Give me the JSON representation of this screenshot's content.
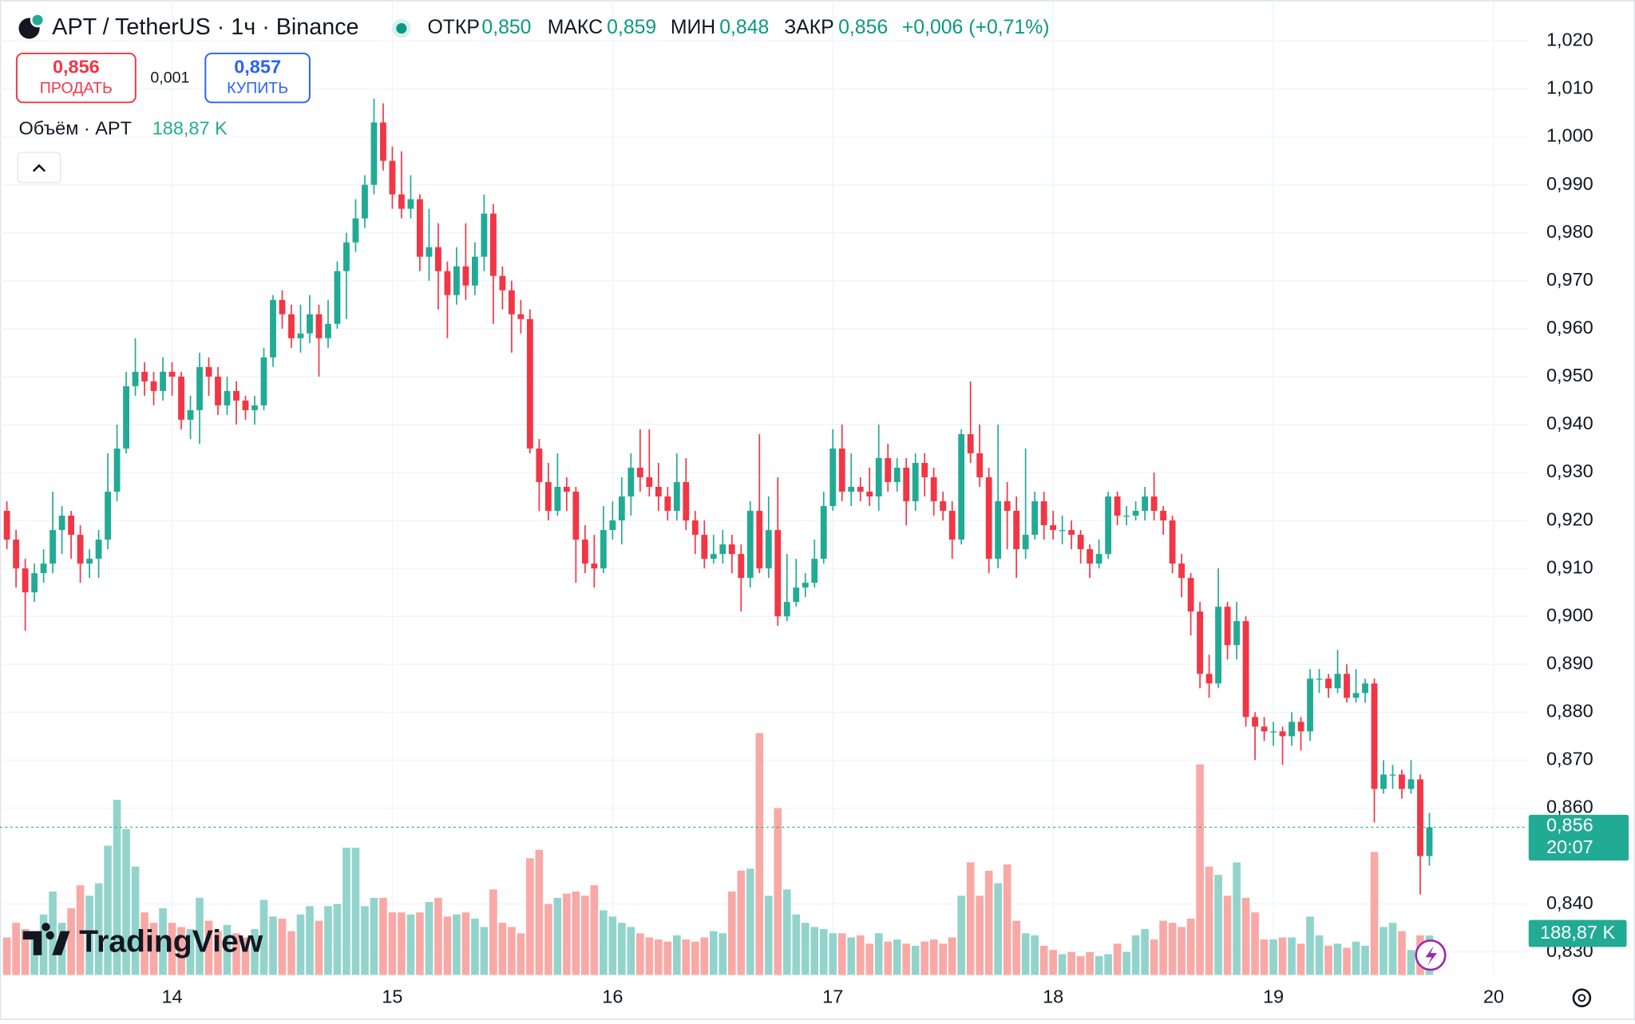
{
  "chart_data": {
    "type": "candlestick",
    "header": {
      "symbol": "APT / TetherUS · 1ч · Binance",
      "open_label": "ОТКР",
      "open": "0,850",
      "high_label": "МАКС",
      "high": "0,859",
      "low_label": "МИН",
      "low": "0,848",
      "close_label": "ЗАКР",
      "close": "0,856",
      "change": "+0,006 (+0,71%)"
    },
    "trade": {
      "sell_price": "0,856",
      "sell_label": "ПРОДАТЬ",
      "spread": "0,001",
      "buy_price": "0,857",
      "buy_label": "КУПИТЬ"
    },
    "volume_legend": {
      "label": "Объём · APT",
      "value": "188,87 K"
    },
    "badges": {
      "price": "0,856",
      "countdown": "20:07",
      "volume": "188,87 K"
    },
    "logo": "TradingView",
    "up_color": "#22ab94",
    "down_color": "#f23645",
    "volume_up_color": "#92d4cc",
    "volume_down_color": "#f8a9a6",
    "grid": true,
    "xlim": [
      -0.75,
      165.7
    ],
    "xticks": [
      {
        "value": 18,
        "label": "14"
      },
      {
        "value": 42,
        "label": "15"
      },
      {
        "value": 66,
        "label": "16"
      },
      {
        "value": 90,
        "label": "17"
      },
      {
        "value": 114,
        "label": "18"
      },
      {
        "value": 138,
        "label": "19"
      },
      {
        "value": 162,
        "label": "20"
      }
    ],
    "ylim": [
      0.8252,
      1.0285
    ],
    "yticks": [
      {
        "value": 1.02,
        "label": "1,020"
      },
      {
        "value": 1.01,
        "label": "1,010"
      },
      {
        "value": 1.0,
        "label": "1,000"
      },
      {
        "value": 0.99,
        "label": "0,990"
      },
      {
        "value": 0.98,
        "label": "0,980"
      },
      {
        "value": 0.97,
        "label": "0,970"
      },
      {
        "value": 0.96,
        "label": "0,960"
      },
      {
        "value": 0.95,
        "label": "0,950"
      },
      {
        "value": 0.94,
        "label": "0,940"
      },
      {
        "value": 0.93,
        "label": "0,930"
      },
      {
        "value": 0.92,
        "label": "0,920"
      },
      {
        "value": 0.91,
        "label": "0,910"
      },
      {
        "value": 0.9,
        "label": "0,900"
      },
      {
        "value": 0.89,
        "label": "0,890"
      },
      {
        "value": 0.88,
        "label": "0,880"
      },
      {
        "value": 0.87,
        "label": "0,870"
      },
      {
        "value": 0.86,
        "label": "0,860"
      },
      {
        "value": 0.84,
        "label": "0,840"
      },
      {
        "value": 0.83,
        "label": "0,830"
      }
    ],
    "candles": [
      [
        0.922,
        0.924,
        0.914,
        0.916
      ],
      [
        0.916,
        0.918,
        0.906,
        0.91
      ],
      [
        0.91,
        0.912,
        0.897,
        0.905
      ],
      [
        0.905,
        0.911,
        0.903,
        0.909
      ],
      [
        0.909,
        0.914,
        0.907,
        0.911
      ],
      [
        0.911,
        0.926,
        0.909,
        0.918
      ],
      [
        0.918,
        0.923,
        0.913,
        0.921
      ],
      [
        0.921,
        0.922,
        0.912,
        0.917
      ],
      [
        0.917,
        0.919,
        0.907,
        0.911
      ],
      [
        0.911,
        0.914,
        0.908,
        0.912
      ],
      [
        0.912,
        0.918,
        0.908,
        0.916
      ],
      [
        0.916,
        0.934,
        0.914,
        0.926
      ],
      [
        0.926,
        0.94,
        0.924,
        0.935
      ],
      [
        0.935,
        0.951,
        0.934,
        0.948
      ],
      [
        0.948,
        0.958,
        0.946,
        0.951
      ],
      [
        0.951,
        0.953,
        0.946,
        0.949
      ],
      [
        0.949,
        0.951,
        0.944,
        0.947
      ],
      [
        0.947,
        0.954,
        0.945,
        0.951
      ],
      [
        0.951,
        0.953,
        0.946,
        0.95
      ],
      [
        0.95,
        0.951,
        0.939,
        0.941
      ],
      [
        0.941,
        0.946,
        0.937,
        0.943
      ],
      [
        0.943,
        0.955,
        0.936,
        0.952
      ],
      [
        0.952,
        0.954,
        0.946,
        0.95
      ],
      [
        0.95,
        0.952,
        0.942,
        0.944
      ],
      [
        0.944,
        0.95,
        0.942,
        0.947
      ],
      [
        0.947,
        0.949,
        0.94,
        0.945
      ],
      [
        0.945,
        0.946,
        0.941,
        0.943
      ],
      [
        0.943,
        0.946,
        0.94,
        0.944
      ],
      [
        0.944,
        0.956,
        0.943,
        0.954
      ],
      [
        0.954,
        0.967,
        0.952,
        0.966
      ],
      [
        0.966,
        0.968,
        0.96,
        0.963
      ],
      [
        0.963,
        0.965,
        0.956,
        0.958
      ],
      [
        0.958,
        0.965,
        0.955,
        0.959
      ],
      [
        0.959,
        0.967,
        0.957,
        0.963
      ],
      [
        0.963,
        0.965,
        0.95,
        0.958
      ],
      [
        0.958,
        0.966,
        0.956,
        0.961
      ],
      [
        0.961,
        0.974,
        0.96,
        0.972
      ],
      [
        0.972,
        0.98,
        0.962,
        0.978
      ],
      [
        0.978,
        0.987,
        0.976,
        0.983
      ],
      [
        0.983,
        0.992,
        0.981,
        0.99
      ],
      [
        0.99,
        1.008,
        0.988,
        1.003
      ],
      [
        1.003,
        1.007,
        0.993,
        0.995
      ],
      [
        0.995,
        0.998,
        0.985,
        0.988
      ],
      [
        0.988,
        0.997,
        0.983,
        0.985
      ],
      [
        0.985,
        0.992,
        0.983,
        0.987
      ],
      [
        0.987,
        0.988,
        0.972,
        0.975
      ],
      [
        0.975,
        0.985,
        0.97,
        0.977
      ],
      [
        0.977,
        0.982,
        0.964,
        0.972
      ],
      [
        0.972,
        0.974,
        0.958,
        0.967
      ],
      [
        0.967,
        0.977,
        0.965,
        0.973
      ],
      [
        0.973,
        0.982,
        0.966,
        0.969
      ],
      [
        0.969,
        0.978,
        0.967,
        0.975
      ],
      [
        0.975,
        0.988,
        0.972,
        0.984
      ],
      [
        0.984,
        0.986,
        0.961,
        0.971
      ],
      [
        0.971,
        0.973,
        0.964,
        0.968
      ],
      [
        0.968,
        0.97,
        0.955,
        0.963
      ],
      [
        0.963,
        0.966,
        0.959,
        0.962
      ],
      [
        0.962,
        0.964,
        0.934,
        0.935
      ],
      [
        0.935,
        0.937,
        0.922,
        0.928
      ],
      [
        0.928,
        0.932,
        0.92,
        0.922
      ],
      [
        0.922,
        0.934,
        0.921,
        0.927
      ],
      [
        0.927,
        0.929,
        0.922,
        0.926
      ],
      [
        0.926,
        0.927,
        0.907,
        0.916
      ],
      [
        0.916,
        0.919,
        0.909,
        0.911
      ],
      [
        0.911,
        0.917,
        0.906,
        0.91
      ],
      [
        0.91,
        0.923,
        0.909,
        0.918
      ],
      [
        0.918,
        0.924,
        0.916,
        0.92
      ],
      [
        0.92,
        0.929,
        0.915,
        0.925
      ],
      [
        0.925,
        0.934,
        0.921,
        0.931
      ],
      [
        0.931,
        0.939,
        0.926,
        0.929
      ],
      [
        0.929,
        0.939,
        0.925,
        0.927
      ],
      [
        0.927,
        0.932,
        0.922,
        0.925
      ],
      [
        0.925,
        0.927,
        0.92,
        0.922
      ],
      [
        0.922,
        0.934,
        0.92,
        0.928
      ],
      [
        0.928,
        0.933,
        0.918,
        0.92
      ],
      [
        0.92,
        0.922,
        0.913,
        0.917
      ],
      [
        0.917,
        0.92,
        0.91,
        0.912
      ],
      [
        0.912,
        0.917,
        0.911,
        0.913
      ],
      [
        0.913,
        0.918,
        0.911,
        0.915
      ],
      [
        0.915,
        0.917,
        0.909,
        0.913
      ],
      [
        0.913,
        0.915,
        0.901,
        0.908
      ],
      [
        0.908,
        0.924,
        0.906,
        0.922
      ],
      [
        0.922,
        0.938,
        0.909,
        0.91
      ],
      [
        0.91,
        0.925,
        0.908,
        0.918
      ],
      [
        0.918,
        0.929,
        0.898,
        0.9
      ],
      [
        0.9,
        0.913,
        0.899,
        0.903
      ],
      [
        0.903,
        0.912,
        0.902,
        0.906
      ],
      [
        0.906,
        0.909,
        0.904,
        0.907
      ],
      [
        0.907,
        0.916,
        0.906,
        0.912
      ],
      [
        0.912,
        0.926,
        0.911,
        0.923
      ],
      [
        0.923,
        0.939,
        0.922,
        0.935
      ],
      [
        0.935,
        0.94,
        0.924,
        0.926
      ],
      [
        0.926,
        0.934,
        0.923,
        0.927
      ],
      [
        0.927,
        0.929,
        0.924,
        0.926
      ],
      [
        0.926,
        0.931,
        0.923,
        0.925
      ],
      [
        0.925,
        0.94,
        0.922,
        0.933
      ],
      [
        0.933,
        0.936,
        0.926,
        0.928
      ],
      [
        0.928,
        0.933,
        0.926,
        0.931
      ],
      [
        0.931,
        0.933,
        0.919,
        0.924
      ],
      [
        0.924,
        0.934,
        0.922,
        0.932
      ],
      [
        0.932,
        0.934,
        0.925,
        0.929
      ],
      [
        0.929,
        0.931,
        0.921,
        0.924
      ],
      [
        0.924,
        0.926,
        0.92,
        0.922
      ],
      [
        0.922,
        0.924,
        0.912,
        0.916
      ],
      [
        0.916,
        0.939,
        0.915,
        0.938
      ],
      [
        0.938,
        0.949,
        0.932,
        0.934
      ],
      [
        0.934,
        0.94,
        0.927,
        0.929
      ],
      [
        0.929,
        0.931,
        0.909,
        0.912
      ],
      [
        0.912,
        0.94,
        0.91,
        0.924
      ],
      [
        0.924,
        0.928,
        0.914,
        0.922
      ],
      [
        0.922,
        0.925,
        0.908,
        0.914
      ],
      [
        0.914,
        0.935,
        0.912,
        0.917
      ],
      [
        0.917,
        0.926,
        0.916,
        0.924
      ],
      [
        0.924,
        0.926,
        0.916,
        0.919
      ],
      [
        0.919,
        0.922,
        0.916,
        0.918
      ],
      [
        0.918,
        0.921,
        0.915,
        0.918
      ],
      [
        0.918,
        0.92,
        0.914,
        0.917
      ],
      [
        0.917,
        0.918,
        0.911,
        0.914
      ],
      [
        0.914,
        0.915,
        0.908,
        0.911
      ],
      [
        0.911,
        0.916,
        0.91,
        0.913
      ],
      [
        0.913,
        0.926,
        0.912,
        0.925
      ],
      [
        0.925,
        0.926,
        0.919,
        0.921
      ],
      [
        0.921,
        0.923,
        0.919,
        0.921
      ],
      [
        0.921,
        0.924,
        0.92,
        0.922
      ],
      [
        0.922,
        0.927,
        0.92,
        0.925
      ],
      [
        0.925,
        0.93,
        0.92,
        0.922
      ],
      [
        0.922,
        0.923,
        0.917,
        0.92
      ],
      [
        0.92,
        0.921,
        0.909,
        0.911
      ],
      [
        0.911,
        0.913,
        0.904,
        0.908
      ],
      [
        0.908,
        0.909,
        0.896,
        0.901
      ],
      [
        0.901,
        0.903,
        0.885,
        0.888
      ],
      [
        0.888,
        0.892,
        0.883,
        0.886
      ],
      [
        0.886,
        0.91,
        0.885,
        0.902
      ],
      [
        0.902,
        0.903,
        0.891,
        0.894
      ],
      [
        0.894,
        0.903,
        0.891,
        0.899
      ],
      [
        0.899,
        0.9,
        0.877,
        0.879
      ],
      [
        0.879,
        0.88,
        0.87,
        0.877
      ],
      [
        0.877,
        0.879,
        0.874,
        0.876
      ],
      [
        0.876,
        0.878,
        0.873,
        0.876
      ],
      [
        0.876,
        0.877,
        0.869,
        0.875
      ],
      [
        0.875,
        0.88,
        0.873,
        0.878
      ],
      [
        0.878,
        0.879,
        0.872,
        0.876
      ],
      [
        0.876,
        0.889,
        0.874,
        0.887
      ],
      [
        0.887,
        0.889,
        0.884,
        0.887
      ],
      [
        0.887,
        0.888,
        0.883,
        0.885
      ],
      [
        0.885,
        0.893,
        0.884,
        0.888
      ],
      [
        0.888,
        0.89,
        0.882,
        0.883
      ],
      [
        0.883,
        0.889,
        0.882,
        0.884
      ],
      [
        0.884,
        0.887,
        0.882,
        0.886
      ],
      [
        0.886,
        0.887,
        0.857,
        0.864
      ],
      [
        0.864,
        0.87,
        0.863,
        0.867
      ],
      [
        0.867,
        0.869,
        0.864,
        0.867
      ],
      [
        0.867,
        0.868,
        0.862,
        0.864
      ],
      [
        0.864,
        0.87,
        0.863,
        0.866
      ],
      [
        0.866,
        0.867,
        0.842,
        0.85
      ],
      [
        0.85,
        0.859,
        0.848,
        0.856
      ]
    ],
    "volume": [
      180,
      250,
      220,
      200,
      290,
      400,
      250,
      320,
      430,
      380,
      440,
      620,
      840,
      700,
      520,
      300,
      250,
      320,
      250,
      230,
      220,
      370,
      260,
      210,
      240,
      200,
      180,
      220,
      360,
      280,
      270,
      210,
      290,
      330,
      260,
      330,
      340,
      610,
      610,
      330,
      370,
      370,
      300,
      300,
      290,
      300,
      350,
      370,
      280,
      290,
      300,
      270,
      230,
      410,
      250,
      230,
      200,
      560,
      600,
      340,
      370,
      390,
      400,
      380,
      430,
      310,
      280,
      250,
      230,
      200,
      180,
      170,
      160,
      190,
      170,
      160,
      180,
      210,
      200,
      400,
      500,
      510,
      1160,
      380,
      800,
      410,
      290,
      250,
      230,
      220,
      200,
      200,
      180,
      190,
      150,
      200,
      160,
      170,
      150,
      140,
      160,
      170,
      150,
      180,
      380,
      540,
      380,
      500,
      440,
      530,
      260,
      200,
      190,
      140,
      120,
      100,
      110,
      90,
      110,
      90,
      100,
      150,
      110,
      190,
      220,
      170,
      260,
      250,
      230,
      270,
      1010,
      520,
      480,
      380,
      540,
      370,
      300,
      170,
      170,
      180,
      180,
      150,
      280,
      190,
      140,
      150,
      130,
      160,
      140,
      590,
      230,
      250,
      210,
      120,
      190,
      188.87
    ]
  }
}
